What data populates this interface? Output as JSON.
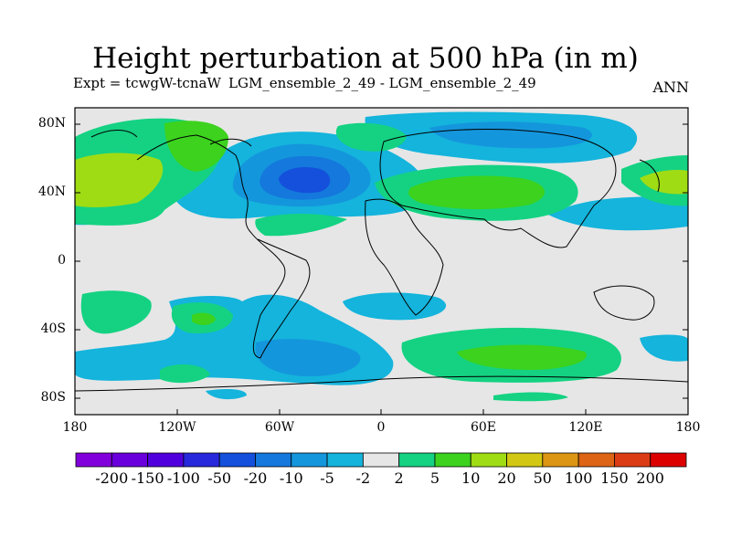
{
  "title": "Height perturbation at 500 hPa (in m)",
  "subtitle_left": "Expt = tcwgW-tcnaW",
  "subtitle_mid": "LGM_ensemble_2_49 - LGM_ensemble_2_49",
  "subtitle_right": "ANN",
  "lat_labels": [
    "80N",
    "40N",
    "0",
    "40S",
    "80S"
  ],
  "lon_labels": [
    "180",
    "120W",
    "60W",
    "0",
    "60E",
    "120E",
    "180"
  ],
  "colorbar": {
    "labels": [
      "-200",
      "-150",
      "-100",
      "-50",
      "-20",
      "-10",
      "-5",
      "-2",
      "2",
      "5",
      "10",
      "20",
      "50",
      "100",
      "150",
      "200"
    ],
    "colors": [
      "#8200dc",
      "#6a00dc",
      "#5000dc",
      "#2828dc",
      "#1450dc",
      "#1478dc",
      "#1496dc",
      "#14b4dc",
      "#e6e6e6",
      "#14d282",
      "#3cd21e",
      "#a0dc14",
      "#d2c814",
      "#dc9614",
      "#dc6414",
      "#dc3c14",
      "#dc0000"
    ]
  },
  "fill_colors": {
    "background": "#e6e6e6",
    "neg_light": "#14b4dc",
    "neg_mid": "#1496dc",
    "neg_dark": "#1478dc",
    "neg_darker": "#1450dc",
    "pos_light": "#14d282",
    "pos_mid": "#3cd21e",
    "pos_high": "#a0dc14"
  }
}
